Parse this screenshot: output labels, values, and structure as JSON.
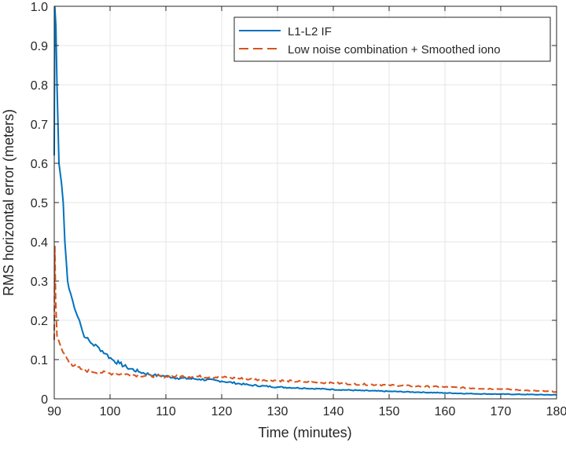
{
  "chart_data": {
    "type": "line",
    "title": "",
    "xlabel": "Time (minutes)",
    "ylabel": "RMS horizontal error (meters)",
    "xlim": [
      90,
      180
    ],
    "ylim": [
      0,
      1
    ],
    "xticks": [
      90,
      100,
      110,
      120,
      130,
      140,
      150,
      160,
      170,
      180
    ],
    "yticks": [
      "0",
      "0.1",
      "0.2",
      "0.3",
      "0.4",
      "0.5",
      "0.6",
      "0.7",
      "0.8",
      "0.9",
      "1.0"
    ],
    "grid": true,
    "legend_position": "top-right",
    "series": [
      {
        "name": "L1-L2 IF",
        "color": "#0072BD",
        "style": "solid",
        "x": [
          90,
          90.1,
          90.3,
          90.5,
          90.85,
          91.3,
          91.6,
          91.9,
          92.4,
          92.9,
          93.3,
          93.9,
          94.5,
          95.1,
          95.7,
          96.8,
          98,
          99.2,
          100.4,
          101.7,
          103,
          105.4,
          107.8,
          110,
          112,
          116,
          120,
          125,
          130,
          135,
          140,
          145,
          150,
          155,
          160,
          165,
          170,
          175,
          180
        ],
        "y": [
          0.62,
          1.0,
          0.95,
          0.8,
          0.6,
          0.55,
          0.5,
          0.4,
          0.3,
          0.27,
          0.25,
          0.22,
          0.2,
          0.17,
          0.155,
          0.14,
          0.13,
          0.115,
          0.1,
          0.09,
          0.08,
          0.068,
          0.06,
          0.058,
          0.053,
          0.05,
          0.045,
          0.035,
          0.03,
          0.027,
          0.024,
          0.021,
          0.019,
          0.017,
          0.015,
          0.013,
          0.012,
          0.011,
          0.01
        ]
      },
      {
        "name": "Low noise combination + Smoothed iono",
        "color": "#D95319",
        "style": "dashed",
        "x": [
          90,
          90.1,
          90.25,
          90.5,
          91,
          91.5,
          92.2,
          93,
          94,
          95,
          96.5,
          98,
          100,
          105,
          110,
          115,
          120,
          125,
          130,
          135,
          140,
          145,
          150,
          155,
          160,
          165,
          170,
          175,
          180
        ],
        "y": [
          0.15,
          0.39,
          0.25,
          0.16,
          0.14,
          0.12,
          0.105,
          0.09,
          0.08,
          0.075,
          0.07,
          0.068,
          0.065,
          0.06,
          0.057,
          0.057,
          0.055,
          0.05,
          0.047,
          0.043,
          0.04,
          0.037,
          0.035,
          0.032,
          0.03,
          0.027,
          0.025,
          0.021,
          0.018
        ]
      }
    ]
  }
}
